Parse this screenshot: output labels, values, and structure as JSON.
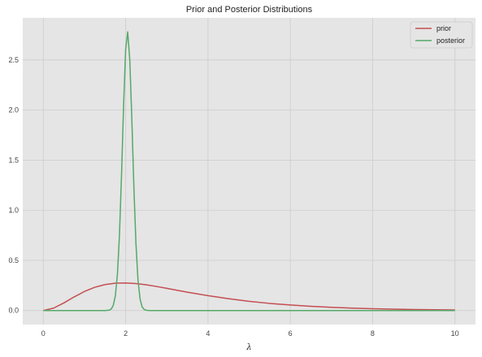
{
  "chart_data": {
    "type": "line",
    "title": "Prior and Posterior Distributions",
    "xlabel": "λ",
    "ylabel": "",
    "xlim": [
      -0.5,
      10.5
    ],
    "ylim": [
      -0.14,
      2.92
    ],
    "xticks": [
      0,
      2,
      4,
      6,
      8,
      10
    ],
    "yticks": [
      0.0,
      0.5,
      1.0,
      1.5,
      2.0,
      2.5
    ],
    "xtick_labels": [
      "0",
      "2",
      "4",
      "6",
      "8",
      "10"
    ],
    "ytick_labels": [
      "0.0",
      "0.5",
      "1.0",
      "1.5",
      "2.0",
      "2.5"
    ],
    "grid": true,
    "legend": "top-right",
    "series": [
      {
        "name": "prior",
        "color": "#c44e52",
        "x": [
          0,
          0.25,
          0.5,
          0.75,
          1.0,
          1.25,
          1.5,
          1.75,
          2.0,
          2.25,
          2.5,
          2.75,
          3.0,
          3.5,
          4.0,
          4.5,
          5.0,
          5.5,
          6.0,
          6.5,
          7.0,
          7.5,
          8.0,
          8.5,
          9.0,
          9.5,
          10.0
        ],
        "y": [
          0.0,
          0.024,
          0.076,
          0.136,
          0.19,
          0.232,
          0.259,
          0.273,
          0.275,
          0.269,
          0.257,
          0.24,
          0.221,
          0.183,
          0.148,
          0.118,
          0.092,
          0.071,
          0.055,
          0.042,
          0.032,
          0.024,
          0.018,
          0.014,
          0.01,
          0.008,
          0.006
        ]
      },
      {
        "name": "posterior",
        "color": "#55a868",
        "x": [
          0,
          1.5,
          1.6,
          1.65,
          1.7,
          1.75,
          1.8,
          1.85,
          1.9,
          1.95,
          2.0,
          2.05,
          2.1,
          2.15,
          2.2,
          2.25,
          2.3,
          2.35,
          2.4,
          2.45,
          2.5,
          2.55,
          2.6,
          2.7,
          10.0
        ],
        "y": [
          0.0,
          0.0,
          0.004,
          0.015,
          0.052,
          0.148,
          0.363,
          0.757,
          1.357,
          2.046,
          2.607,
          2.78,
          2.503,
          1.912,
          1.229,
          0.668,
          0.302,
          0.116,
          0.037,
          0.01,
          0.003,
          0.001,
          0.0,
          0.0,
          0.0
        ]
      }
    ]
  }
}
